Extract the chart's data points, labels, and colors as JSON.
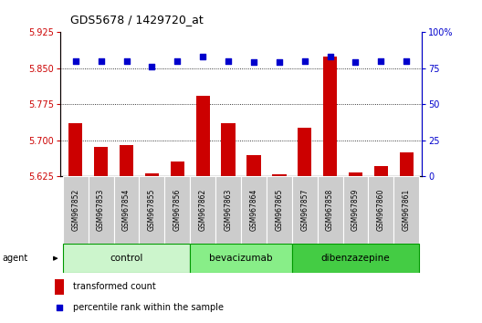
{
  "title": "GDS5678 / 1429720_at",
  "samples": [
    "GSM967852",
    "GSM967853",
    "GSM967854",
    "GSM967855",
    "GSM967856",
    "GSM967862",
    "GSM967863",
    "GSM967864",
    "GSM967865",
    "GSM967857",
    "GSM967858",
    "GSM967859",
    "GSM967860",
    "GSM967861"
  ],
  "groups": [
    {
      "label": "control",
      "color": "#ccf5cc"
    },
    {
      "label": "bevacizumab",
      "color": "#88ee88"
    },
    {
      "label": "dibenzazepine",
      "color": "#44cc44"
    }
  ],
  "group_boundaries": [
    0,
    5,
    9,
    14
  ],
  "transformed_count": [
    5.735,
    5.685,
    5.69,
    5.63,
    5.655,
    5.793,
    5.735,
    5.668,
    5.628,
    5.725,
    5.875,
    5.632,
    5.645,
    5.675
  ],
  "percentile_rank": [
    80,
    80,
    80,
    76,
    80,
    83,
    80,
    79,
    79,
    80,
    83,
    79,
    80,
    80
  ],
  "ylim_left": [
    5.625,
    5.925
  ],
  "ylim_right": [
    0,
    100
  ],
  "yticks_left": [
    5.625,
    5.7,
    5.775,
    5.85,
    5.925
  ],
  "yticks_right": [
    0,
    25,
    50,
    75,
    100
  ],
  "bar_color": "#cc0000",
  "dot_color": "#0000cc",
  "agent_label": "agent",
  "legend_bar": "transformed count",
  "legend_dot": "percentile rank within the sample",
  "group_border_color": "#009900",
  "sample_box_color": "#cccccc"
}
